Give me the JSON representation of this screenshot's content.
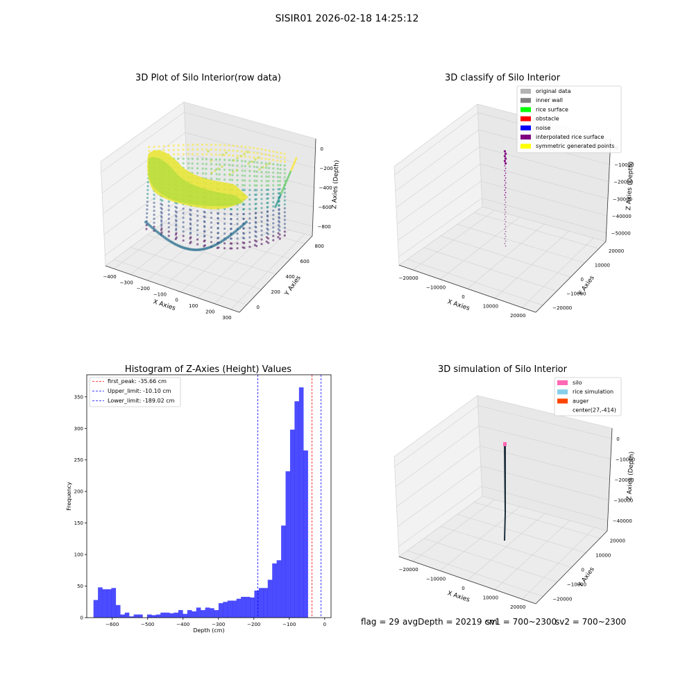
{
  "suptitle": "SISIR01 2026-02-18 14:25:12",
  "panel1": {
    "title": "3D Plot of Silo Interior(row data)",
    "xlabel": "X Axies",
    "ylabel": "Y Axies",
    "zlabel": "Z Axies (Depth)",
    "xticks": [
      "−400",
      "−300",
      "−200",
      "−100",
      "0",
      "100",
      "200",
      "300"
    ],
    "yticks": [
      "0",
      "200",
      "400",
      "600",
      "800"
    ],
    "zticks": [
      "0",
      "−200",
      "−400",
      "−600",
      "−800"
    ]
  },
  "panel2": {
    "title": "3D classify of Silo Interior",
    "xlabel": "X Axies",
    "ylabel": "Y Axies",
    "zlabel": "Z Axies (Depth)",
    "xticks": [
      "−20000",
      "−10000",
      "0",
      "10000",
      "20000"
    ],
    "yticks": [
      "−20000",
      "−10000",
      "0",
      "10000",
      "20000"
    ],
    "zticks": [
      "0",
      "−10000",
      "−20000",
      "−30000",
      "−40000",
      "−50000"
    ],
    "legend": [
      {
        "label": "original data",
        "color": "#b3b3b3"
      },
      {
        "label": "inner wall",
        "color": "#808080"
      },
      {
        "label": "rice surface",
        "color": "#00ff00"
      },
      {
        "label": "obstacle",
        "color": "#ff0000"
      },
      {
        "label": "noise",
        "color": "#0000ff"
      },
      {
        "label": "interpolated rice surface",
        "color": "#800080"
      },
      {
        "label": "symmetric generated points",
        "color": "#ffff00"
      }
    ]
  },
  "panel4": {
    "title": "3D simulation of Silo Interior",
    "xlabel": "X Axies",
    "ylabel": "Y Axies",
    "zlabel": "Z Axies (Depth)",
    "xticks": [
      "−20000",
      "−10000",
      "0",
      "10000",
      "20000"
    ],
    "yticks": [
      "−20000",
      "−10000",
      "0",
      "10000",
      "20000"
    ],
    "zticks": [
      "0",
      "−10000",
      "−20000",
      "−30000",
      "−40000"
    ],
    "legend": [
      {
        "label": "silo",
        "color": "#ff69b4"
      },
      {
        "label": "rice simulation",
        "color": "#87ceeb"
      },
      {
        "label": "auger",
        "color": "#ff4500"
      },
      {
        "label": "center(27,-414)",
        "color": ""
      }
    ]
  },
  "chart_data": {
    "type": "bar",
    "title": "Histogram of Z-Axies (Height) Values",
    "xlabel": "Depth (cm)",
    "ylabel": "Frequency",
    "xlim": [
      -672,
      18
    ],
    "ylim": [
      0,
      385
    ],
    "xticks": [
      -600,
      -500,
      -400,
      -300,
      -200,
      -100,
      0
    ],
    "xtick_labels": [
      "−600",
      "−500",
      "−400",
      "−300",
      "−200",
      "−100",
      "0"
    ],
    "yticks": [
      0,
      50,
      100,
      150,
      200,
      250,
      300,
      350
    ],
    "bar_color": "#0000ff",
    "bin_start": -653,
    "bin_width": 12.62,
    "values": [
      28,
      48,
      45,
      45,
      47,
      20,
      5,
      8,
      2,
      5,
      5,
      0,
      5,
      4,
      5,
      8,
      8,
      7,
      8,
      12,
      6,
      12,
      10,
      16,
      12,
      16,
      15,
      12,
      23,
      25,
      27,
      27,
      30,
      33,
      33,
      32,
      43,
      47,
      47,
      60,
      86,
      91,
      146,
      232,
      298,
      343,
      365,
      265
    ],
    "lines": [
      {
        "label": "first_peak: -35.66 cm",
        "x": -35.66,
        "color": "#ff0000"
      },
      {
        "label": "Upper_limit: -10.10 cm",
        "x": -10.1,
        "color": "#0000ff"
      },
      {
        "label": "Lower_limit: -189.02 cm",
        "x": -189.02,
        "color": "#0000ff"
      }
    ]
  },
  "status": {
    "flag": "flag = 29",
    "avg": "avgDepth = 20219 cm",
    "sv1": "sv1 = 700~2300",
    "sv2": "sv2 = 700~2300"
  }
}
